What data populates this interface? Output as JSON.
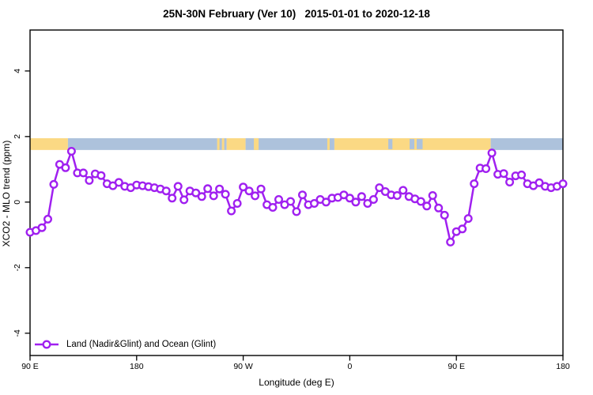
{
  "chart_data": {
    "type": "line",
    "title": "25N-30N February (Ver 10)   2015-01-01 to 2020-12-18",
    "xlabel": "Longitude (deg E)",
    "ylabel": "XCO2 - MLO trend (ppm)",
    "xlim": [
      90,
      540
    ],
    "ylim": [
      -4.68,
      5.25
    ],
    "grid": false,
    "x_ticks": [
      {
        "v": 90,
        "label": "90 E"
      },
      {
        "v": 180,
        "label": "180"
      },
      {
        "v": 270,
        "label": "90 W"
      },
      {
        "v": 360,
        "label": "0"
      },
      {
        "v": 450,
        "label": "90 E"
      },
      {
        "v": 540,
        "label": "180"
      }
    ],
    "y_ticks": [
      {
        "v": -4,
        "label": "-4"
      },
      {
        "v": -2,
        "label": "-2"
      },
      {
        "v": 0,
        "label": "0"
      },
      {
        "v": 2,
        "label": "2"
      },
      {
        "v": 4,
        "label": "4"
      }
    ],
    "legend": {
      "position": "bottom-left",
      "entries": [
        {
          "label": "Land (Nadir&Glint) and Ocean (Glint)",
          "color": "#A020F0",
          "marker": "open-circle"
        }
      ]
    },
    "series": [
      {
        "name": "Land (Nadir&Glint) and Ocean (Glint)",
        "color": "#A020F0",
        "x": [
          90,
          95,
          100,
          105,
          110,
          115,
          120,
          125,
          130,
          135,
          140,
          145,
          150,
          155,
          160,
          165,
          170,
          175,
          180,
          185,
          190,
          195,
          200,
          205,
          210,
          215,
          220,
          225,
          230,
          235,
          240,
          245,
          250,
          255,
          260,
          265,
          270,
          275,
          280,
          285,
          290,
          295,
          300,
          305,
          310,
          315,
          320,
          325,
          330,
          335,
          340,
          345,
          350,
          355,
          360,
          365,
          370,
          375,
          380,
          385,
          390,
          395,
          400,
          405,
          410,
          415,
          420,
          425,
          430,
          435,
          440,
          445,
          450,
          455,
          460,
          465,
          470,
          475,
          480,
          485,
          490,
          495,
          500,
          505,
          510,
          515,
          520,
          525,
          530,
          535,
          540
        ],
        "y": [
          -0.92,
          -0.87,
          -0.78,
          -0.52,
          0.54,
          1.15,
          1.05,
          1.55,
          0.89,
          0.89,
          0.66,
          0.86,
          0.81,
          0.56,
          0.5,
          0.6,
          0.48,
          0.44,
          0.52,
          0.5,
          0.47,
          0.44,
          0.4,
          0.34,
          0.12,
          0.48,
          0.07,
          0.34,
          0.28,
          0.17,
          0.41,
          0.19,
          0.4,
          0.24,
          -0.27,
          -0.04,
          0.46,
          0.34,
          0.19,
          0.4,
          -0.08,
          -0.16,
          0.08,
          -0.08,
          0.02,
          -0.29,
          0.22,
          -0.08,
          -0.04,
          0.08,
          0.0,
          0.12,
          0.14,
          0.22,
          0.12,
          0.0,
          0.17,
          -0.04,
          0.08,
          0.44,
          0.32,
          0.22,
          0.2,
          0.36,
          0.17,
          0.1,
          0.02,
          -0.12,
          0.2,
          -0.18,
          -0.4,
          -1.22,
          -0.9,
          -0.82,
          -0.5,
          0.56,
          1.04,
          1.02,
          1.5,
          0.85,
          0.87,
          0.61,
          0.8,
          0.83,
          0.56,
          0.5,
          0.59,
          0.48,
          0.44,
          0.48,
          0.56
        ]
      }
    ],
    "surface_band": {
      "description": "land/ocean strip",
      "y_range": [
        1.59,
        1.95
      ],
      "land_color": "#FBD984",
      "ocean_color": "#ADC2DC",
      "segments": [
        {
          "from": 90,
          "to": 122,
          "type": "land"
        },
        {
          "from": 122,
          "to": 248,
          "type": "ocean"
        },
        {
          "from": 248,
          "to": 256,
          "type": "ocean"
        },
        {
          "from": 256,
          "to": 272,
          "type": "land"
        },
        {
          "from": 272,
          "to": 347,
          "type": "ocean"
        },
        {
          "from": 347,
          "to": 479,
          "type": "land"
        },
        {
          "from": 479,
          "to": 540,
          "type": "ocean"
        }
      ],
      "land_flecks": [
        [
          248,
          250
        ],
        [
          252,
          254
        ],
        [
          279,
          283
        ],
        [
          341,
          343
        ]
      ],
      "ocean_flecks": [
        [
          392.5,
          396
        ],
        [
          410.5,
          414.5
        ],
        [
          416.5,
          421.5
        ]
      ]
    },
    "colors": {
      "line": "#A020F0",
      "marker_fill": "#FFFFFF",
      "axis": "#000000",
      "background": "#FFFFFF"
    }
  }
}
